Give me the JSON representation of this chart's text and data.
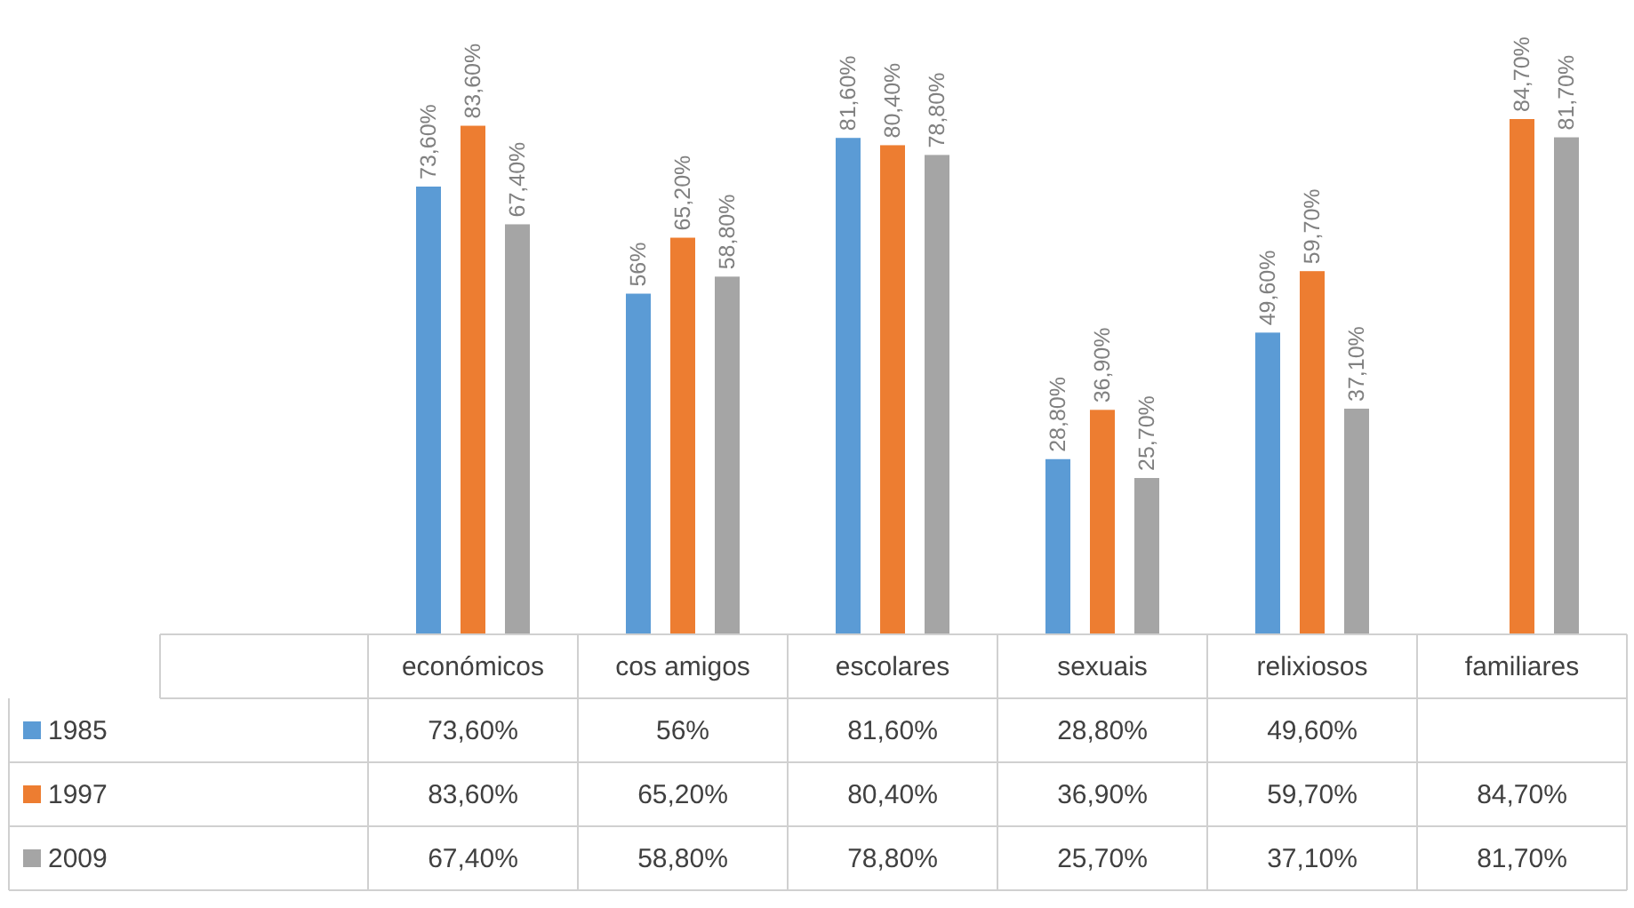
{
  "chart_data": {
    "type": "bar",
    "categories": [
      "económicos",
      "cos amigos",
      "escolares",
      "sexuais",
      "relixiosos",
      "familiares"
    ],
    "legend": "bottom",
    "series": [
      {
        "name": "1985",
        "color": "#5b9bd5",
        "values": [
          73.6,
          56,
          81.6,
          28.8,
          49.6,
          null
        ],
        "value_labels": [
          "73,60%",
          "56%",
          "81,60%",
          "28,80%",
          "49,60%",
          null
        ]
      },
      {
        "name": "1997",
        "color": "#ed7d31",
        "values": [
          83.6,
          65.2,
          80.4,
          36.9,
          59.7,
          84.7
        ],
        "value_labels": [
          "83,60%",
          "65,20%",
          "80,40%",
          "36,90%",
          "59,70%",
          "84,70%"
        ]
      },
      {
        "name": "2009",
        "color": "#a5a5a5",
        "values": [
          67.4,
          58.8,
          78.8,
          25.7,
          37.1,
          81.7
        ],
        "value_labels": [
          "67,40%",
          "58,80%",
          "78,80%",
          "25,70%",
          "37,10%",
          "81,70%"
        ]
      }
    ]
  }
}
